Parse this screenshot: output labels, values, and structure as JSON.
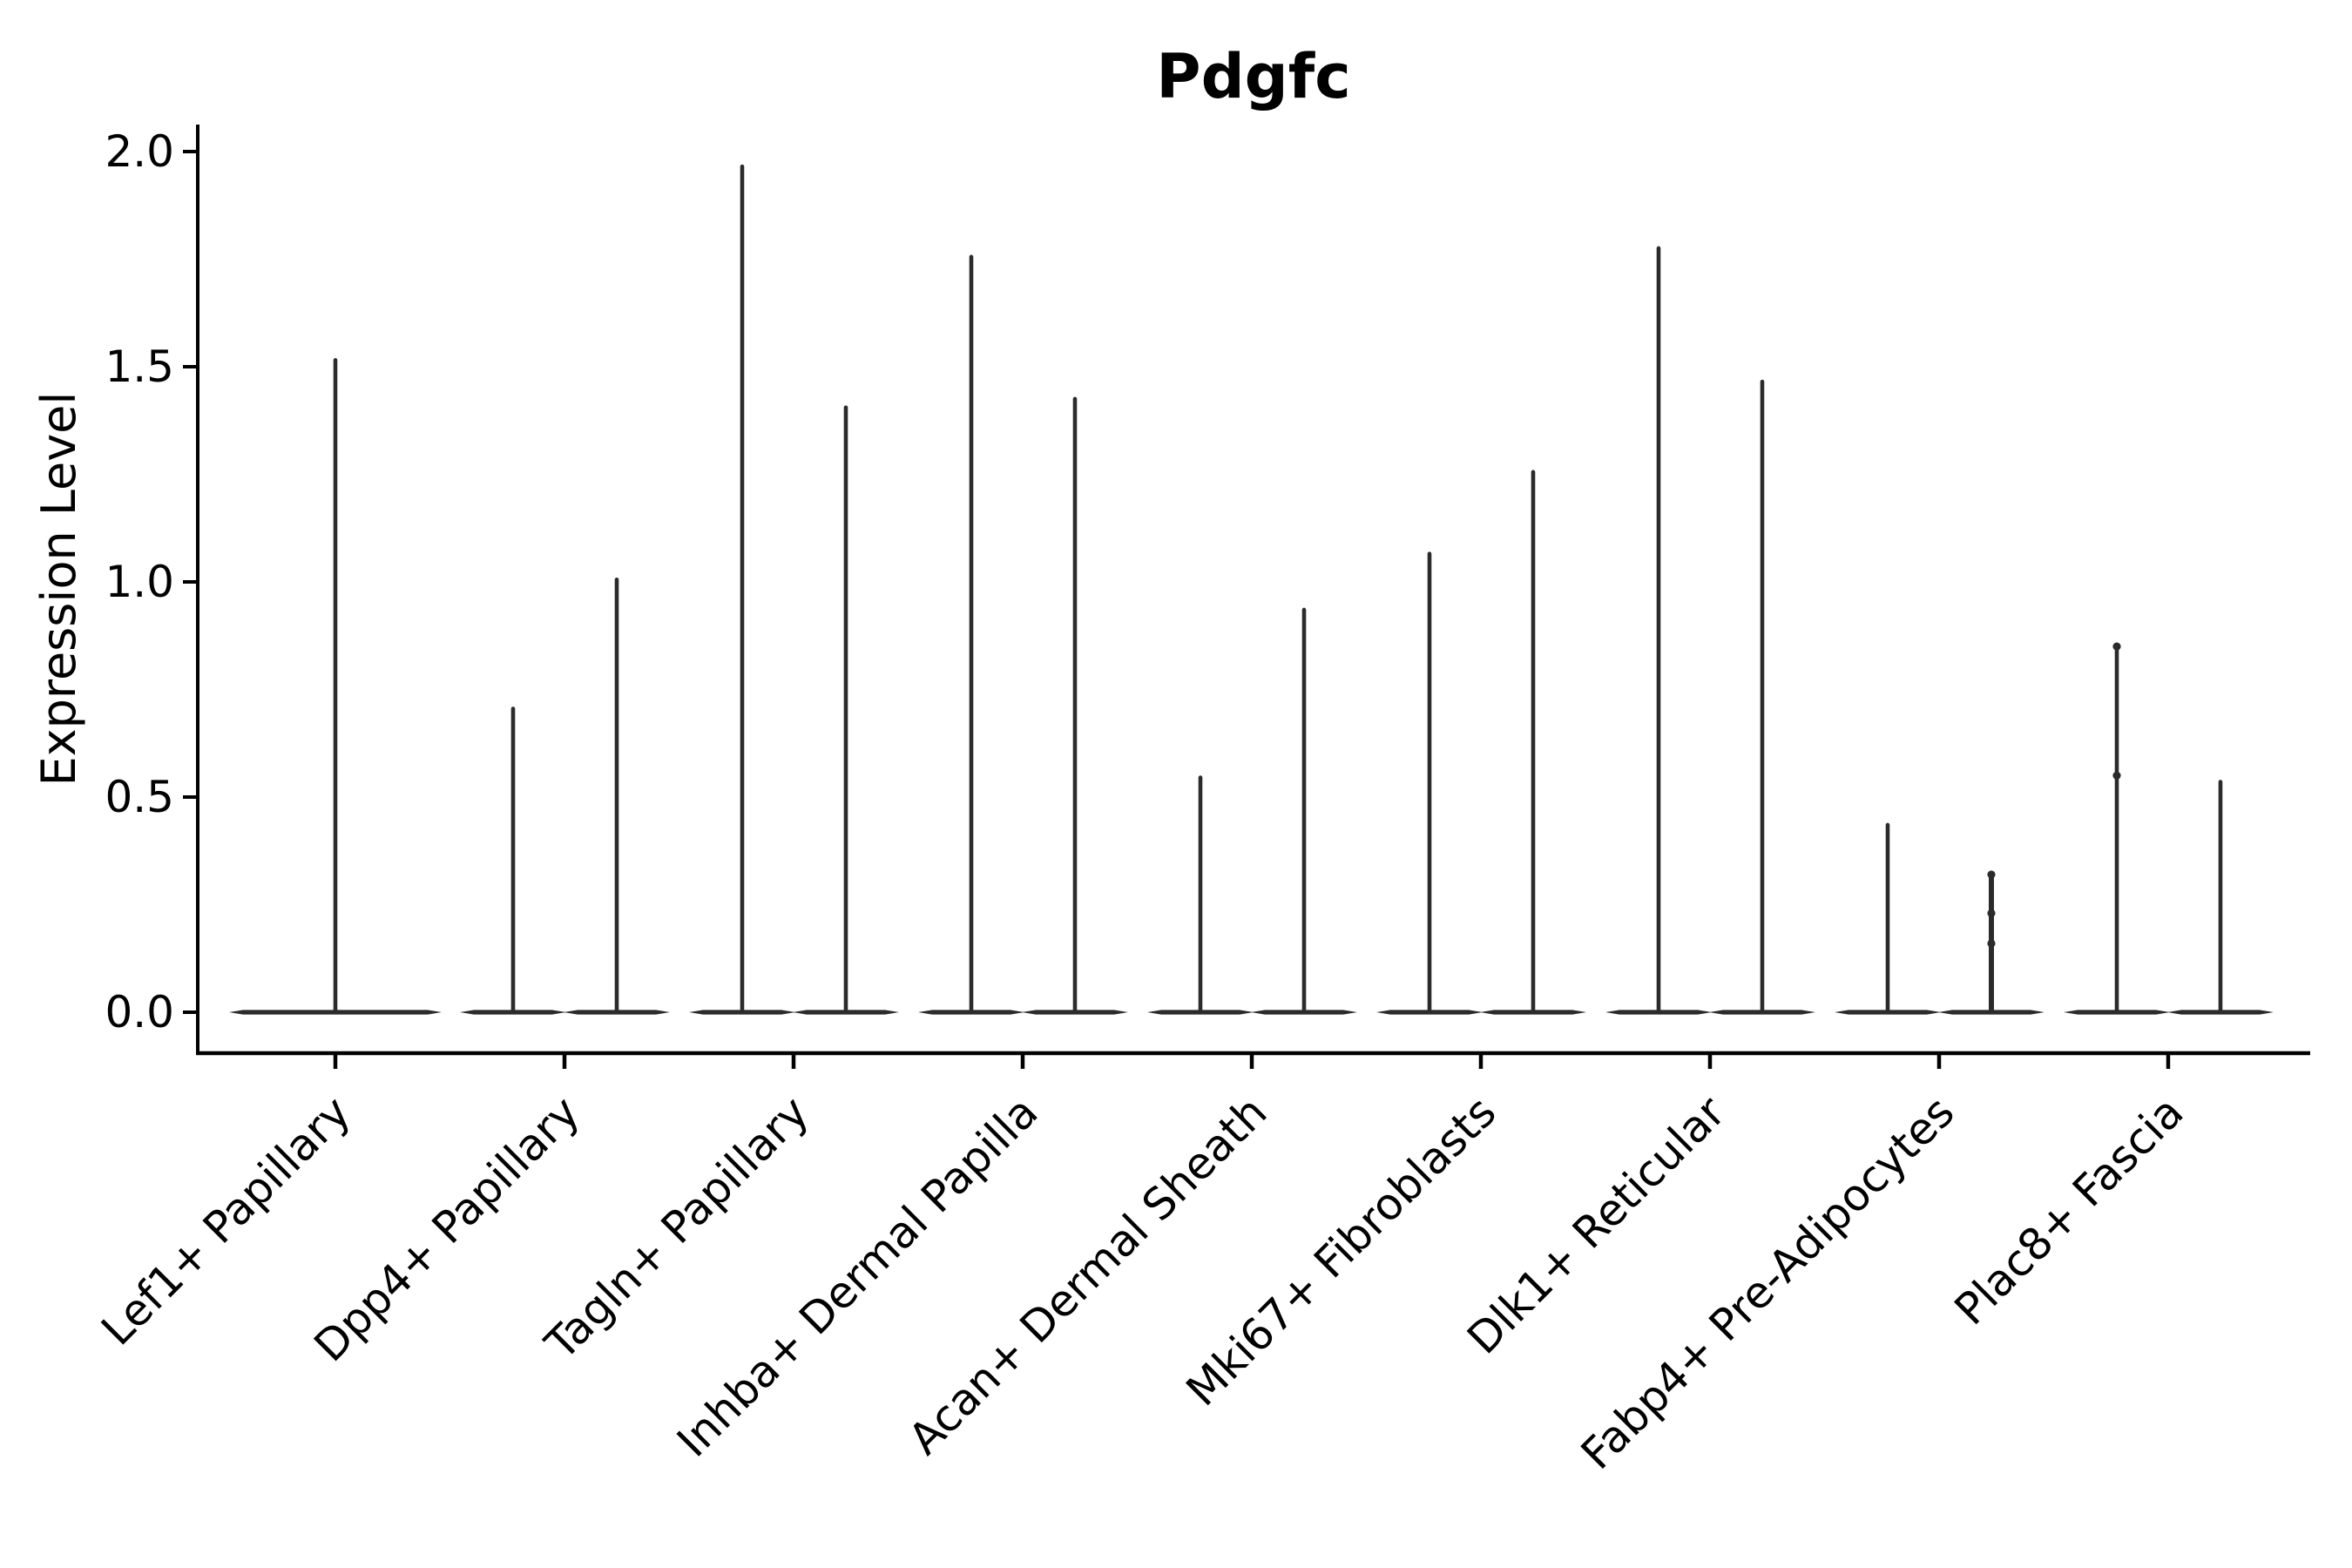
{
  "page": {
    "background": "#ffffff"
  },
  "chart_data": {
    "type": "violin",
    "title": "Pdgfc",
    "ylabel": "Expression Level",
    "xlabel": "",
    "ylim": [
      -0.09,
      2.06
    ],
    "yticks": [
      "0.0",
      "0.5",
      "1.0",
      "1.5",
      "2.0"
    ],
    "ytick_values": [
      0.0,
      0.5,
      1.0,
      1.5,
      2.0
    ],
    "grid": false,
    "legend": "none",
    "spines": [
      "left",
      "bottom"
    ],
    "colors": {
      "violin": "#2b2b2b",
      "axis": "#000000",
      "text": "#000000"
    },
    "categories": [
      {
        "label": "Lef1+ Papillary",
        "violins": [
          {
            "group": "single",
            "max": 1.52
          }
        ]
      },
      {
        "label": "Dpp4+ Papillary",
        "violins": [
          {
            "group": "left",
            "max": 0.71
          },
          {
            "group": "right",
            "max": 1.01
          }
        ]
      },
      {
        "label": "Tagln+ Papillary",
        "violins": [
          {
            "group": "left",
            "max": 1.97
          },
          {
            "group": "right",
            "max": 1.41
          }
        ]
      },
      {
        "label": "Inhba+ Dermal Papilla",
        "violins": [
          {
            "group": "left",
            "max": 1.76
          },
          {
            "group": "right",
            "max": 1.43
          }
        ]
      },
      {
        "label": "Acan+ Dermal Sheath",
        "violins": [
          {
            "group": "left",
            "max": 0.55
          },
          {
            "group": "right",
            "max": 0.94
          }
        ]
      },
      {
        "label": "Mki67+ Fibroblasts",
        "violins": [
          {
            "group": "left",
            "max": 1.07
          },
          {
            "group": "right",
            "max": 1.26
          }
        ]
      },
      {
        "label": "Dlk1+ Reticular",
        "violins": [
          {
            "group": "left",
            "max": 1.78
          },
          {
            "group": "right",
            "max": 1.47
          }
        ]
      },
      {
        "label": "Fabp4+ Pre-Adipocytes",
        "violins": [
          {
            "group": "left",
            "max": 0.44
          },
          {
            "group": "right",
            "max": 0.32,
            "points": [
              0.32,
              0.23,
              0.16
            ],
            "width": 6
          }
        ]
      },
      {
        "label": "Plac8+ Fascia",
        "violins": [
          {
            "group": "left",
            "max": 0.85,
            "points": [
              0.85,
              0.55
            ]
          },
          {
            "group": "right",
            "max": 0.54
          }
        ]
      }
    ]
  }
}
